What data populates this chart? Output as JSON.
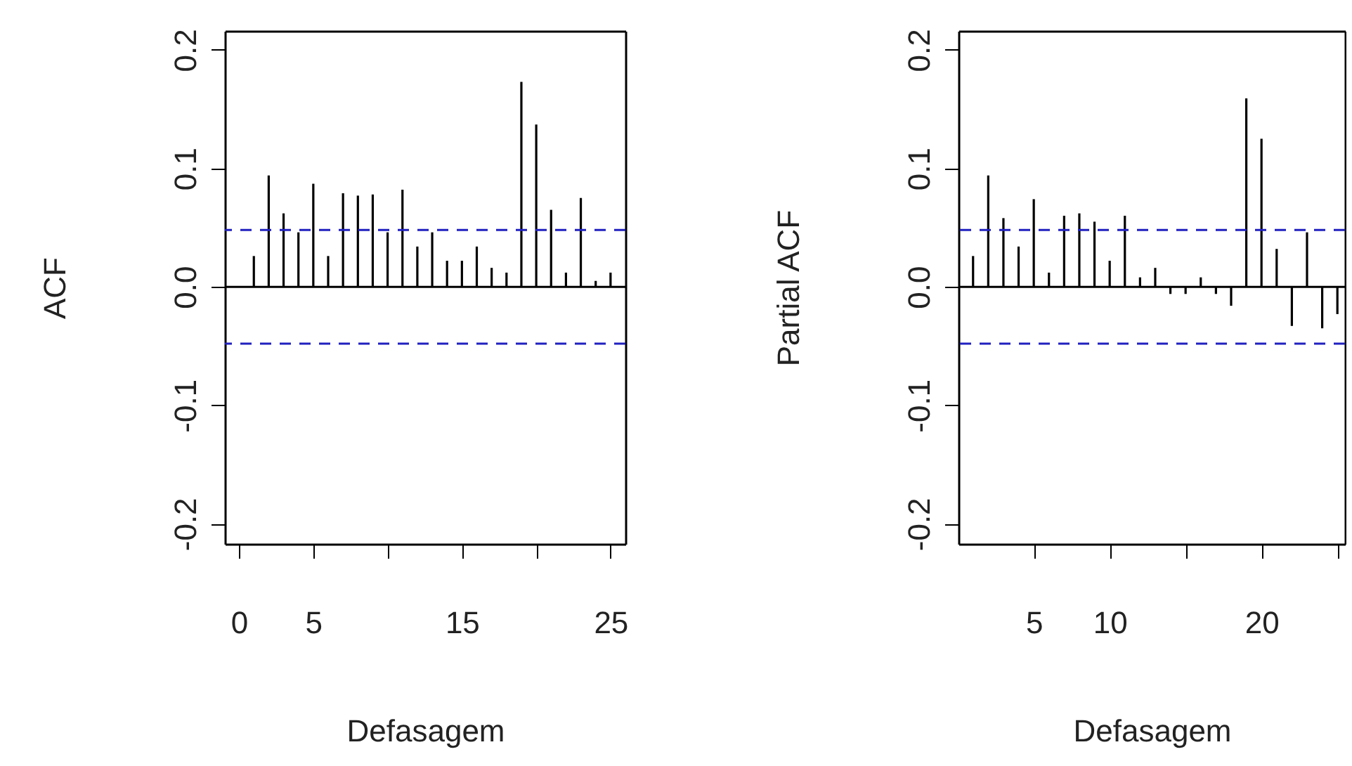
{
  "chart_data": [
    {
      "type": "bar",
      "xlabel": "Defasagem",
      "ylabel": "ACF",
      "x": [
        1,
        2,
        3,
        4,
        5,
        6,
        7,
        8,
        9,
        10,
        11,
        12,
        13,
        14,
        15,
        16,
        17,
        18,
        19,
        20,
        21,
        22,
        23,
        24,
        25
      ],
      "values": [
        0.026,
        0.094,
        0.062,
        0.046,
        0.087,
        0.026,
        0.079,
        0.077,
        0.078,
        0.046,
        0.082,
        0.034,
        0.046,
        0.022,
        0.022,
        0.034,
        0.016,
        0.012,
        0.173,
        0.137,
        0.065,
        0.012,
        0.075,
        0.005,
        0.012
      ],
      "color": "#000000",
      "xlim": [
        -0.95,
        26
      ],
      "ylim": [
        -0.217,
        0.216
      ],
      "xticks": [
        0,
        5,
        {
          "value": 10,
          "label": null
        },
        15,
        {
          "value": 20,
          "label": null
        },
        25
      ],
      "yticks": [
        -0.2,
        -0.1,
        {
          "value": 0,
          "label": "0.0"
        },
        0.1,
        0.2
      ],
      "ref_lines": [
        {
          "axis": "y",
          "value": 0,
          "color": "#000000",
          "line_style": "solid"
        },
        {
          "axis": "y",
          "value": 0.048,
          "color": "#2020c0",
          "line_style": "dashed"
        },
        {
          "axis": "y",
          "value": -0.048,
          "color": "#2020c0",
          "line_style": "dashed"
        }
      ],
      "grid": false
    },
    {
      "type": "bar",
      "xlabel": "Defasagem",
      "ylabel": "Partial ACF",
      "x": [
        1,
        2,
        3,
        4,
        5,
        6,
        7,
        8,
        9,
        10,
        11,
        12,
        13,
        14,
        15,
        16,
        17,
        18,
        19,
        20,
        21,
        22,
        23,
        24,
        25
      ],
      "values": [
        0.026,
        0.094,
        0.058,
        0.034,
        0.074,
        0.012,
        0.06,
        0.062,
        0.055,
        0.022,
        0.06,
        0.008,
        0.016,
        -0.006,
        -0.006,
        0.008,
        -0.006,
        -0.016,
        0.159,
        0.125,
        0.032,
        -0.033,
        0.046,
        -0.035,
        -0.023
      ],
      "color": "#000000",
      "xlim": [
        0.04,
        25.5
      ],
      "ylim": [
        -0.217,
        0.216
      ],
      "xticks": [
        5,
        10,
        {
          "value": 15,
          "label": null
        },
        20,
        {
          "value": 25,
          "label": null
        }
      ],
      "yticks": [
        -0.2,
        -0.1,
        {
          "value": 0,
          "label": "0.0"
        },
        0.1,
        0.2
      ],
      "ref_lines": [
        {
          "axis": "y",
          "value": 0,
          "color": "#000000",
          "line_style": "solid"
        },
        {
          "axis": "y",
          "value": 0.048,
          "color": "#2020c0",
          "line_style": "dashed"
        },
        {
          "axis": "y",
          "value": -0.048,
          "color": "#2020c0",
          "line_style": "dashed"
        }
      ],
      "grid": false
    }
  ]
}
